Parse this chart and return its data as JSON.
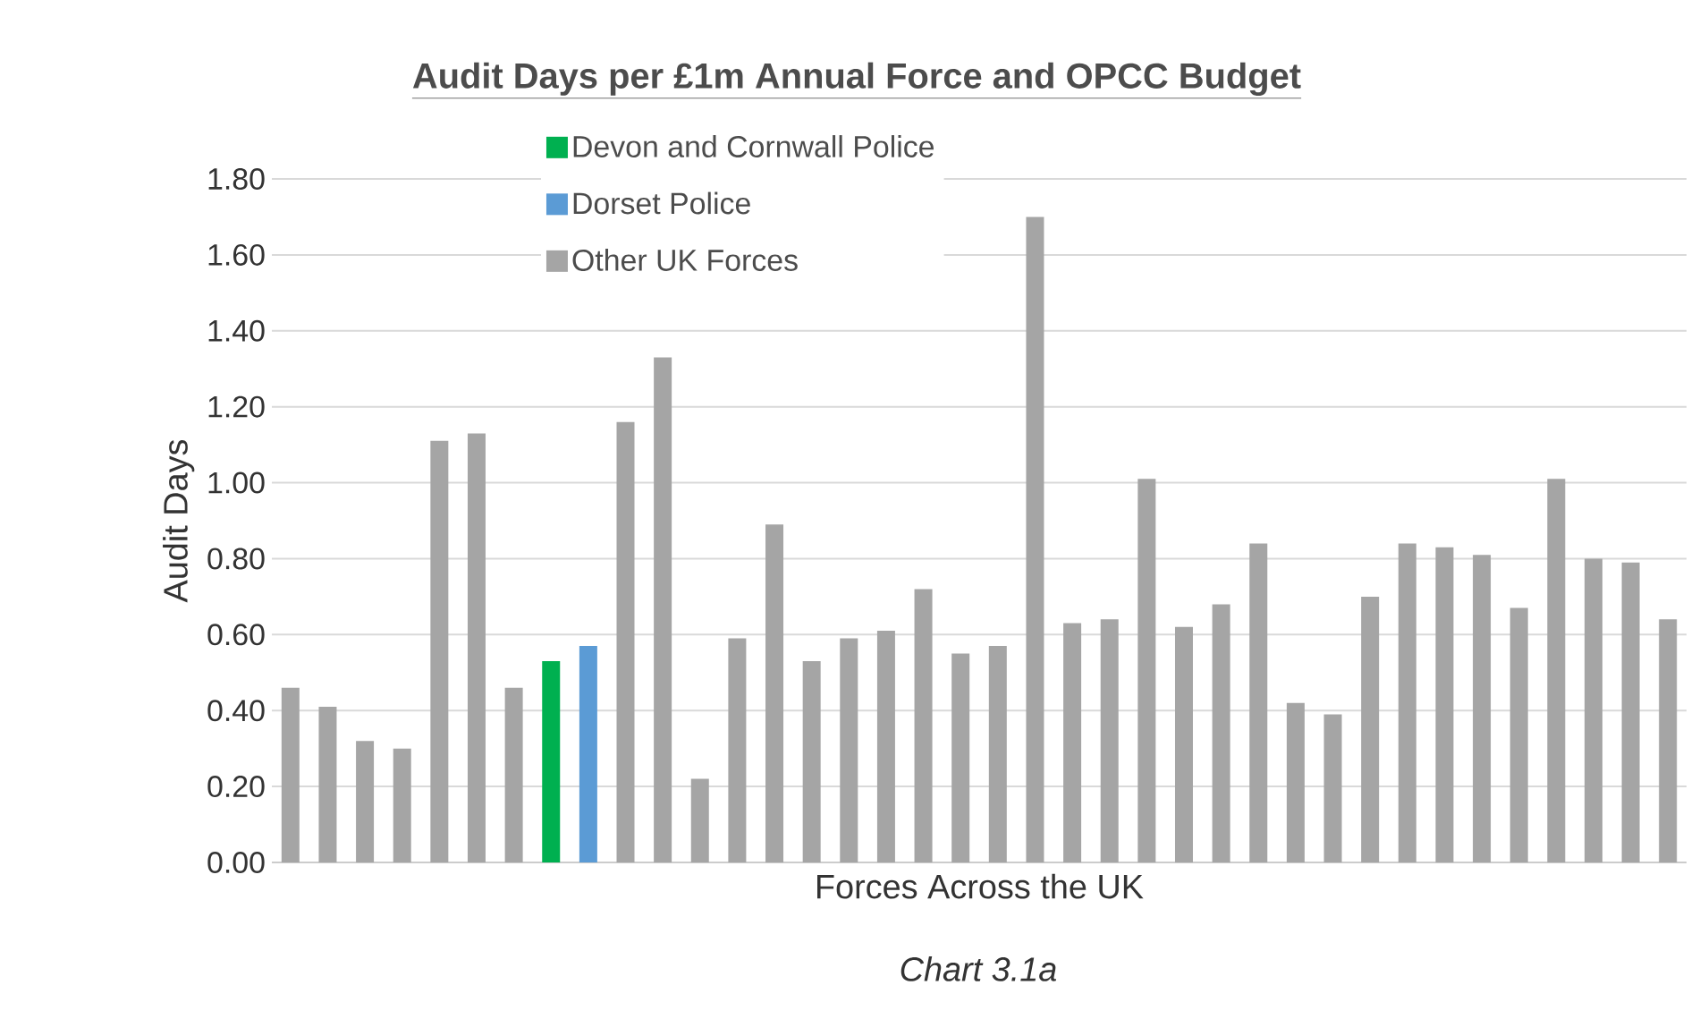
{
  "chart_data": {
    "type": "bar",
    "title": "Audit Days per £1m Annual Force and OPCC Budget",
    "xlabel": "Forces Across the UK",
    "ylabel": "Audit Days",
    "annotations": [
      "Chart 3.1a"
    ],
    "categories": [
      null,
      null,
      null,
      null,
      null,
      null,
      null,
      null,
      null,
      null,
      null,
      null,
      null,
      null,
      null,
      null,
      null,
      null,
      null,
      null,
      null,
      null,
      null,
      null,
      null,
      null,
      null,
      null,
      null,
      null,
      null,
      null,
      null,
      null,
      null,
      null,
      null,
      null
    ],
    "series": [
      {
        "name": "Devon and Cornwall Police",
        "color": "#00b050",
        "values": [
          null,
          null,
          null,
          null,
          null,
          null,
          null,
          0.53,
          null,
          null,
          null,
          null,
          null,
          null,
          null,
          null,
          null,
          null,
          null,
          null,
          null,
          null,
          null,
          null,
          null,
          null,
          null,
          null,
          null,
          null,
          null,
          null,
          null,
          null,
          null,
          null,
          null,
          null
        ]
      },
      {
        "name": "Dorset Police",
        "color": "#5b9bd5",
        "values": [
          null,
          null,
          null,
          null,
          null,
          null,
          null,
          null,
          0.57,
          null,
          null,
          null,
          null,
          null,
          null,
          null,
          null,
          null,
          null,
          null,
          null,
          null,
          null,
          null,
          null,
          null,
          null,
          null,
          null,
          null,
          null,
          null,
          null,
          null,
          null,
          null,
          null,
          null
        ]
      },
      {
        "name": "Other UK Forces",
        "color": "#a5a5a5",
        "values": [
          0.46,
          0.41,
          0.32,
          0.3,
          1.11,
          1.13,
          0.46,
          null,
          null,
          1.16,
          1.33,
          0.22,
          0.59,
          0.89,
          0.53,
          0.59,
          0.61,
          0.72,
          0.55,
          0.57,
          1.7,
          0.63,
          0.64,
          1.01,
          0.62,
          0.68,
          0.84,
          0.42,
          0.39,
          0.7,
          0.84,
          0.83,
          0.81,
          0.67,
          1.01,
          0.8,
          0.79,
          0.64
        ]
      }
    ],
    "ylim": [
      0,
      1.8
    ],
    "yticks": [
      {
        "value": 0,
        "label": "0.00"
      },
      {
        "value": 0.2,
        "label": "0.20"
      },
      {
        "value": 0.4,
        "label": "0.40"
      },
      {
        "value": 0.6,
        "label": "0.60"
      },
      {
        "value": 0.8,
        "label": "0.80"
      },
      {
        "value": 1.0,
        "label": "1.00"
      },
      {
        "value": 1.2,
        "label": "1.20"
      },
      {
        "value": 1.4,
        "label": "1.40"
      },
      {
        "value": 1.6,
        "label": "1.60"
      },
      {
        "value": 1.8,
        "label": "1.80"
      }
    ],
    "grid": "y",
    "legend": "top"
  }
}
